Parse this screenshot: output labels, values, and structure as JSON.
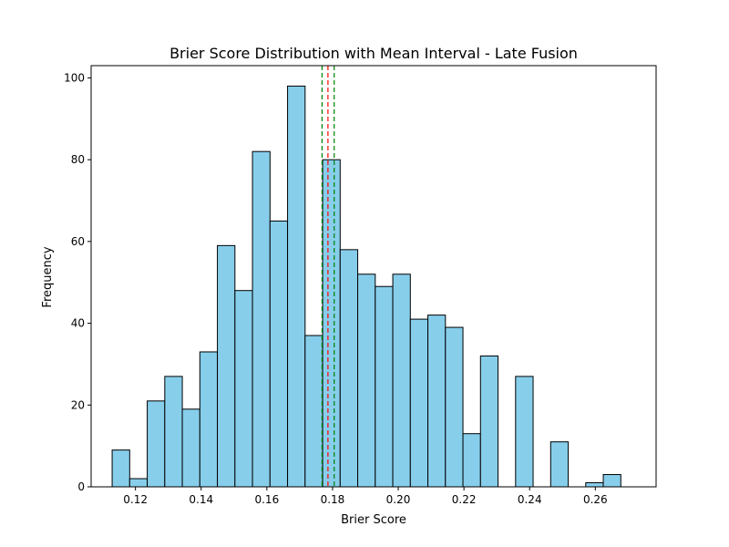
{
  "chart_data": {
    "type": "bar",
    "title": "Brier Score Distribution with Mean Interval - Late Fusion",
    "xlabel": "Brier Score",
    "ylabel": "Frequency",
    "xlim": [
      0.1065,
      0.2785
    ],
    "ylim": [
      0,
      103
    ],
    "x_ticks": [
      0.12,
      0.14,
      0.16,
      0.18,
      0.2,
      0.22,
      0.24,
      0.26
    ],
    "x_tick_labels": [
      "0.12",
      "0.14",
      "0.16",
      "0.18",
      "0.20",
      "0.22",
      "0.24",
      "0.26"
    ],
    "y_ticks": [
      0,
      20,
      40,
      60,
      80,
      100
    ],
    "y_tick_labels": [
      "0",
      "20",
      "40",
      "60",
      "80",
      "100"
    ],
    "bin_start": 0.1129,
    "bin_width": 0.00534,
    "values": [
      9,
      2,
      21,
      27,
      19,
      33,
      59,
      48,
      82,
      65,
      98,
      37,
      80,
      58,
      52,
      49,
      52,
      41,
      42,
      39,
      13,
      32,
      0,
      27,
      0,
      11,
      0,
      1,
      3
    ],
    "bar_color": "#87CEEB",
    "edge_color": "#000000",
    "vlines": [
      {
        "x": 0.1768,
        "color": "#008000",
        "style": "dashed"
      },
      {
        "x": 0.1786,
        "color": "#ff0000",
        "style": "dashed"
      },
      {
        "x": 0.1805,
        "color": "#008000",
        "style": "dashed"
      }
    ],
    "grid": false
  }
}
